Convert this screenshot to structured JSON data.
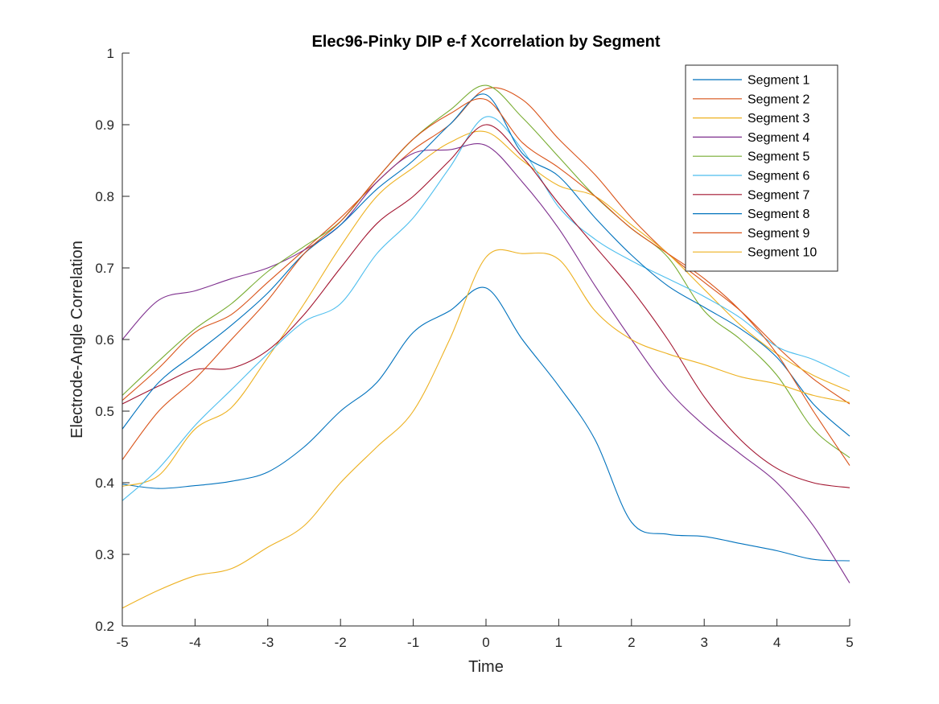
{
  "chart_data": {
    "type": "line",
    "title": "Elec96-Pinky DIP e-f Xcorrelation by Segment",
    "xlabel": "Time",
    "ylabel": "Electrode-Angle Correlation",
    "xlim": [
      -5,
      5
    ],
    "ylim": [
      0.2,
      1
    ],
    "xticks": [
      "-5",
      "-4",
      "-3",
      "-2",
      "-1",
      "0",
      "1",
      "2",
      "3",
      "4",
      "5"
    ],
    "yticks": [
      "0.2",
      "0.3",
      "0.4",
      "0.5",
      "0.6",
      "0.7",
      "0.8",
      "0.9",
      "1"
    ],
    "grid": false,
    "legend_position": "top-right",
    "x": [
      -5,
      -4.5,
      -4,
      -3.5,
      -3,
      -2.5,
      -2,
      -1.5,
      -1,
      -0.5,
      0,
      0.5,
      1,
      1.5,
      2,
      2.5,
      3,
      3.5,
      4,
      4.5,
      5
    ],
    "series": [
      {
        "name": "Segment 1",
        "color": "#0072BD",
        "values": [
          0.398,
          0.392,
          0.396,
          0.402,
          0.415,
          0.45,
          0.5,
          0.54,
          0.61,
          0.64,
          0.672,
          0.6,
          0.535,
          0.46,
          0.345,
          0.328,
          0.325,
          0.315,
          0.305,
          0.293,
          0.291
        ]
      },
      {
        "name": "Segment 2",
        "color": "#D95319",
        "values": [
          0.515,
          0.56,
          0.61,
          0.635,
          0.68,
          0.725,
          0.77,
          0.82,
          0.865,
          0.9,
          0.95,
          0.935,
          0.88,
          0.83,
          0.77,
          0.72,
          0.68,
          0.64,
          0.59,
          0.545,
          0.51
        ]
      },
      {
        "name": "Segment 3",
        "color": "#EDB120",
        "values": [
          0.395,
          0.41,
          0.475,
          0.505,
          0.575,
          0.65,
          0.73,
          0.8,
          0.84,
          0.875,
          0.89,
          0.85,
          0.815,
          0.8,
          0.76,
          0.72,
          0.67,
          0.62,
          0.58,
          0.55,
          0.528
        ]
      },
      {
        "name": "Segment 4",
        "color": "#7E2F8E",
        "values": [
          0.6,
          0.655,
          0.668,
          0.685,
          0.7,
          0.725,
          0.76,
          0.82,
          0.86,
          0.865,
          0.871,
          0.82,
          0.755,
          0.675,
          0.6,
          0.53,
          0.48,
          0.44,
          0.4,
          0.34,
          0.26
        ]
      },
      {
        "name": "Segment 5",
        "color": "#77AC30",
        "values": [
          0.522,
          0.57,
          0.615,
          0.65,
          0.695,
          0.73,
          0.765,
          0.825,
          0.88,
          0.92,
          0.955,
          0.91,
          0.855,
          0.8,
          0.755,
          0.715,
          0.64,
          0.6,
          0.55,
          0.475,
          0.435
        ]
      },
      {
        "name": "Segment 6",
        "color": "#4DBEEE",
        "values": [
          0.375,
          0.42,
          0.48,
          0.53,
          0.58,
          0.625,
          0.65,
          0.72,
          0.77,
          0.84,
          0.911,
          0.865,
          0.785,
          0.74,
          0.71,
          0.685,
          0.66,
          0.63,
          0.59,
          0.572,
          0.548
        ]
      },
      {
        "name": "Segment 7",
        "color": "#A2142F",
        "values": [
          0.51,
          0.535,
          0.558,
          0.56,
          0.585,
          0.635,
          0.7,
          0.762,
          0.8,
          0.85,
          0.9,
          0.855,
          0.79,
          0.73,
          0.67,
          0.6,
          0.52,
          0.46,
          0.42,
          0.4,
          0.393
        ]
      },
      {
        "name": "Segment 8",
        "color": "#0072BD",
        "values": [
          0.475,
          0.54,
          0.58,
          0.62,
          0.665,
          0.72,
          0.76,
          0.81,
          0.85,
          0.9,
          0.942,
          0.86,
          0.828,
          0.77,
          0.718,
          0.675,
          0.645,
          0.615,
          0.575,
          0.51,
          0.465
        ]
      },
      {
        "name": "Segment 9",
        "color": "#D95319",
        "values": [
          0.432,
          0.5,
          0.545,
          0.6,
          0.655,
          0.72,
          0.765,
          0.825,
          0.88,
          0.915,
          0.935,
          0.875,
          0.84,
          0.8,
          0.755,
          0.72,
          0.685,
          0.64,
          0.58,
          0.5,
          0.424
        ]
      },
      {
        "name": "Segment 10",
        "color": "#EDB120",
        "values": [
          0.225,
          0.25,
          0.27,
          0.28,
          0.31,
          0.34,
          0.4,
          0.45,
          0.5,
          0.6,
          0.715,
          0.72,
          0.712,
          0.64,
          0.6,
          0.58,
          0.565,
          0.548,
          0.538,
          0.522,
          0.512
        ]
      }
    ]
  }
}
